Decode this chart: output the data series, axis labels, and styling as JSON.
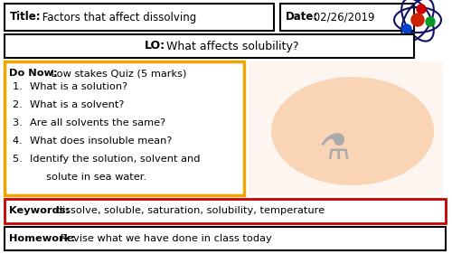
{
  "bg_color": "#ffffff",
  "title_bold": "Title:",
  "title_normal": " Factors that affect dissolving",
  "date_bold": "Date:",
  "date_normal": " 02/26/2019",
  "lo_bold": "LO:",
  "lo_normal": " What affects solubility?",
  "donow_bold": "Do Now:",
  "donow_normal": " Low stakes Quiz (5 marks)",
  "donow_items": [
    "What is a solution?",
    "What is a solvent?",
    "Are all solvents the same?",
    "What does insoluble mean?",
    "Identify the solution, solvent and",
    "     solute in sea water."
  ],
  "keywords_bold": "Keywords:",
  "keywords_normal": " dissolve, soluble, saturation, solubility, temperature",
  "homework_bold": "Homework:",
  "homework_normal": " Revise what we have done in class today",
  "color_black": "#000000",
  "color_yellow": "#f0a500",
  "color_red": "#cc0000",
  "fs_title": 8.5,
  "fs_lo": 9.0,
  "fs_donow": 8.2,
  "fs_kw": 8.2,
  "fs_hw": 8.2
}
